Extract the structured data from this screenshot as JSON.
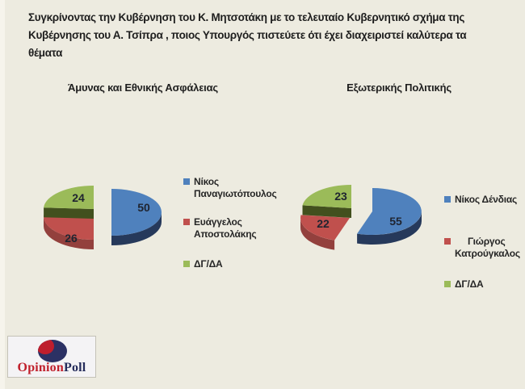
{
  "title": {
    "lines": [
      "Συγκρίνοντας την Κυβέρνηση του Κ. Μητσοτάκη με το τελευταίο Κυβερνητικό σχήμα της",
      "Κυβέρνησης  του Α. Τσίπρα , ποιος Υπουργός πιστεύετε ότι έχει διαχειριστεί καλύτερα τα",
      "θέματα"
    ]
  },
  "colors": {
    "background": "#EDEBE0",
    "title_text": "#1E1E1E",
    "data_label_text": "#1F2430"
  },
  "chart_data": [
    {
      "type": "pie",
      "style": "3d-exploded",
      "title": "Άμυνας και Εθνικής Ασφάλειας",
      "labels": [
        "Νίκος Παναγιωτόπουλος",
        "Ευάγγελος Αποστολάκης",
        "ΔΓ/ΔΑ"
      ],
      "values": [
        50,
        26,
        24
      ],
      "colors": [
        "#4F81BD",
        "#C0504D",
        "#9BBB59"
      ],
      "side_colors": [
        "#26395B",
        "#93403D",
        "#42501E"
      ],
      "legend_position": "right",
      "data_labels": "values-inside"
    },
    {
      "type": "pie",
      "style": "3d-exploded",
      "title": "Εξωτερικής Πολιτικής",
      "labels": [
        "Νίκος Δένδιας",
        "Γιώργος Κατρούγκαλος",
        "ΔΓ/ΔΑ"
      ],
      "values": [
        55,
        22,
        23
      ],
      "colors": [
        "#4F81BD",
        "#C0504D",
        "#9BBB59"
      ],
      "side_colors": [
        "#26395B",
        "#93403D",
        "#42501E"
      ],
      "legend_position": "right",
      "data_labels": "values-inside"
    }
  ],
  "logo": {
    "text_primary": "Opinion",
    "text_secondary": "Poll",
    "colors": {
      "primary": "#C0202C",
      "secondary": "#252C5B",
      "ellipse": "#2B3164",
      "crescent": "#BE1E2D",
      "box_bg": "#F4F3F5"
    }
  }
}
